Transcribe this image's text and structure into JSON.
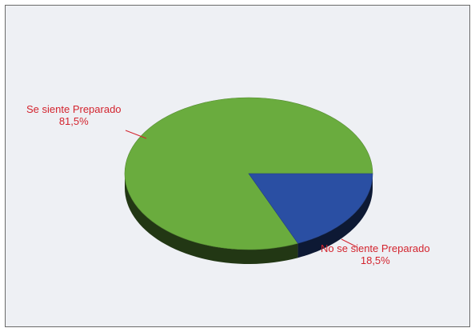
{
  "chart_data": {
    "type": "pie",
    "style": "3d",
    "title": "",
    "slices": [
      {
        "label": "Se siente Preparado",
        "percent_label": "81,5%",
        "value": 81.5,
        "color": "#6aac3e"
      },
      {
        "label": "No se siente Preparado",
        "percent_label": "18,5%",
        "value": 18.5,
        "color": "#2a4fa3"
      }
    ],
    "label_color": "#d3242e",
    "leader_color": "#d3242e",
    "background": "#eef0f4",
    "legend": "none"
  }
}
